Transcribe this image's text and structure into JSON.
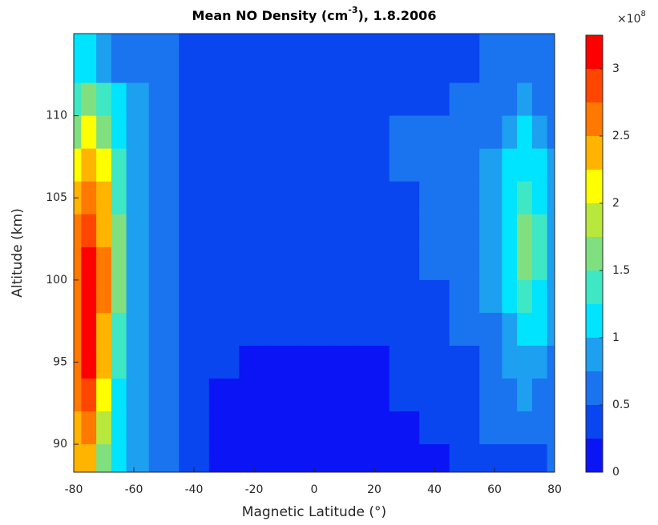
{
  "chart_data": {
    "type": "contour",
    "title": [
      "Mean NO Density (cm",
      "-3",
      "), 1.8.2006"
    ],
    "x_label": "Magnetic Latitude (°)",
    "y_label": "Altitude (km)",
    "colorbar_label": "×10",
    "colorbar_exponent": "8",
    "x": [
      -80,
      -75,
      -70,
      -65,
      -60,
      -50,
      -40,
      -30,
      -20,
      -10,
      0,
      10,
      20,
      30,
      40,
      50,
      60,
      65,
      70,
      75,
      80
    ],
    "y": [
      113,
      111,
      109,
      107,
      105,
      103,
      101,
      99,
      97,
      95,
      93,
      91,
      89
    ],
    "z": [
      [
        1.0,
        1.1,
        0.9,
        0.7,
        0.6,
        0.5,
        0.3,
        0.3,
        0.3,
        0.3,
        0.3,
        0.3,
        0.3,
        0.3,
        0.4,
        0.4,
        0.5,
        0.5,
        0.55,
        0.5,
        0.5
      ],
      [
        1.4,
        1.6,
        1.3,
        1.0,
        0.8,
        0.55,
        0.35,
        0.3,
        0.3,
        0.3,
        0.3,
        0.3,
        0.3,
        0.4,
        0.4,
        0.55,
        0.6,
        0.7,
        0.8,
        0.7,
        0.6
      ],
      [
        1.7,
        2.0,
        1.6,
        1.1,
        0.85,
        0.6,
        0.35,
        0.3,
        0.3,
        0.3,
        0.3,
        0.3,
        0.35,
        0.55,
        0.6,
        0.6,
        0.7,
        0.9,
        1.0,
        0.9,
        0.7
      ],
      [
        2.1,
        2.4,
        2.0,
        1.3,
        0.9,
        0.6,
        0.4,
        0.3,
        0.3,
        0.3,
        0.3,
        0.3,
        0.3,
        0.55,
        0.6,
        0.65,
        0.8,
        1.0,
        1.2,
        1.1,
        0.8
      ],
      [
        2.4,
        2.7,
        2.3,
        1.4,
        0.9,
        0.6,
        0.4,
        0.3,
        0.3,
        0.3,
        0.3,
        0.3,
        0.3,
        0.45,
        0.6,
        0.65,
        0.8,
        1.1,
        1.4,
        1.2,
        0.85
      ],
      [
        2.6,
        2.9,
        2.4,
        1.5,
        0.9,
        0.6,
        0.4,
        0.3,
        0.3,
        0.3,
        0.3,
        0.3,
        0.3,
        0.4,
        0.55,
        0.65,
        0.8,
        1.2,
        1.6,
        1.3,
        0.9
      ],
      [
        2.7,
        3.1,
        2.5,
        1.5,
        0.9,
        0.6,
        0.4,
        0.3,
        0.3,
        0.3,
        0.3,
        0.3,
        0.3,
        0.35,
        0.5,
        0.6,
        0.8,
        1.2,
        1.6,
        1.3,
        0.9
      ],
      [
        2.7,
        3.1,
        2.5,
        1.5,
        0.9,
        0.6,
        0.4,
        0.3,
        0.3,
        0.3,
        0.3,
        0.3,
        0.3,
        0.3,
        0.4,
        0.55,
        0.75,
        1.1,
        1.3,
        1.1,
        0.85
      ],
      [
        2.6,
        3.1,
        2.4,
        1.4,
        0.85,
        0.55,
        0.4,
        0.3,
        0.3,
        0.3,
        0.3,
        0.3,
        0.3,
        0.3,
        0.35,
        0.5,
        0.7,
        0.95,
        1.1,
        1.0,
        0.8
      ],
      [
        2.5,
        3.0,
        2.3,
        1.3,
        0.8,
        0.55,
        0.4,
        0.3,
        0.2,
        0.2,
        0.2,
        0.2,
        0.2,
        0.3,
        0.3,
        0.45,
        0.6,
        0.8,
        0.9,
        0.85,
        0.7
      ],
      [
        2.5,
        2.8,
        2.1,
        1.2,
        0.8,
        0.5,
        0.4,
        0.2,
        0.15,
        0.2,
        0.15,
        0.15,
        0.15,
        0.3,
        0.3,
        0.4,
        0.55,
        0.7,
        0.8,
        0.7,
        0.6
      ],
      [
        2.4,
        2.6,
        1.9,
        1.1,
        0.75,
        0.5,
        0.35,
        0.15,
        0.15,
        0.15,
        0.15,
        0.15,
        0.15,
        0.2,
        0.3,
        0.35,
        0.5,
        0.55,
        0.6,
        0.55,
        0.5
      ],
      [
        2.3,
        2.4,
        1.7,
        1.0,
        0.75,
        0.5,
        0.3,
        0.15,
        0.15,
        0.15,
        0.15,
        0.15,
        0.15,
        0.2,
        0.2,
        0.3,
        0.4,
        0.45,
        0.45,
        0.45,
        0.5
      ]
    ],
    "levels": [
      0,
      0.25,
      0.5,
      0.75,
      1,
      1.25,
      1.5,
      1.75,
      2,
      2.25,
      2.5,
      2.75,
      3,
      3.25
    ],
    "colors": [
      "#0a14f5",
      "#0a46f0",
      "#1a74f0",
      "#1ea0f0",
      "#00e4ff",
      "#3ee8c4",
      "#80e080",
      "#b8e83c",
      "#ffff00",
      "#ffb400",
      "#ff7800",
      "#ff4600",
      "#ff0000"
    ],
    "xlim": [
      -80,
      80
    ],
    "ylim": [
      88.3,
      115
    ],
    "xticks": [
      -80,
      -60,
      -40,
      -20,
      0,
      20,
      40,
      60,
      80
    ],
    "yticks": [
      90,
      95,
      100,
      105,
      110
    ],
    "clim": [
      0,
      3.25
    ],
    "cticks": [
      0,
      0.5,
      1,
      1.5,
      2,
      2.5,
      3
    ]
  }
}
